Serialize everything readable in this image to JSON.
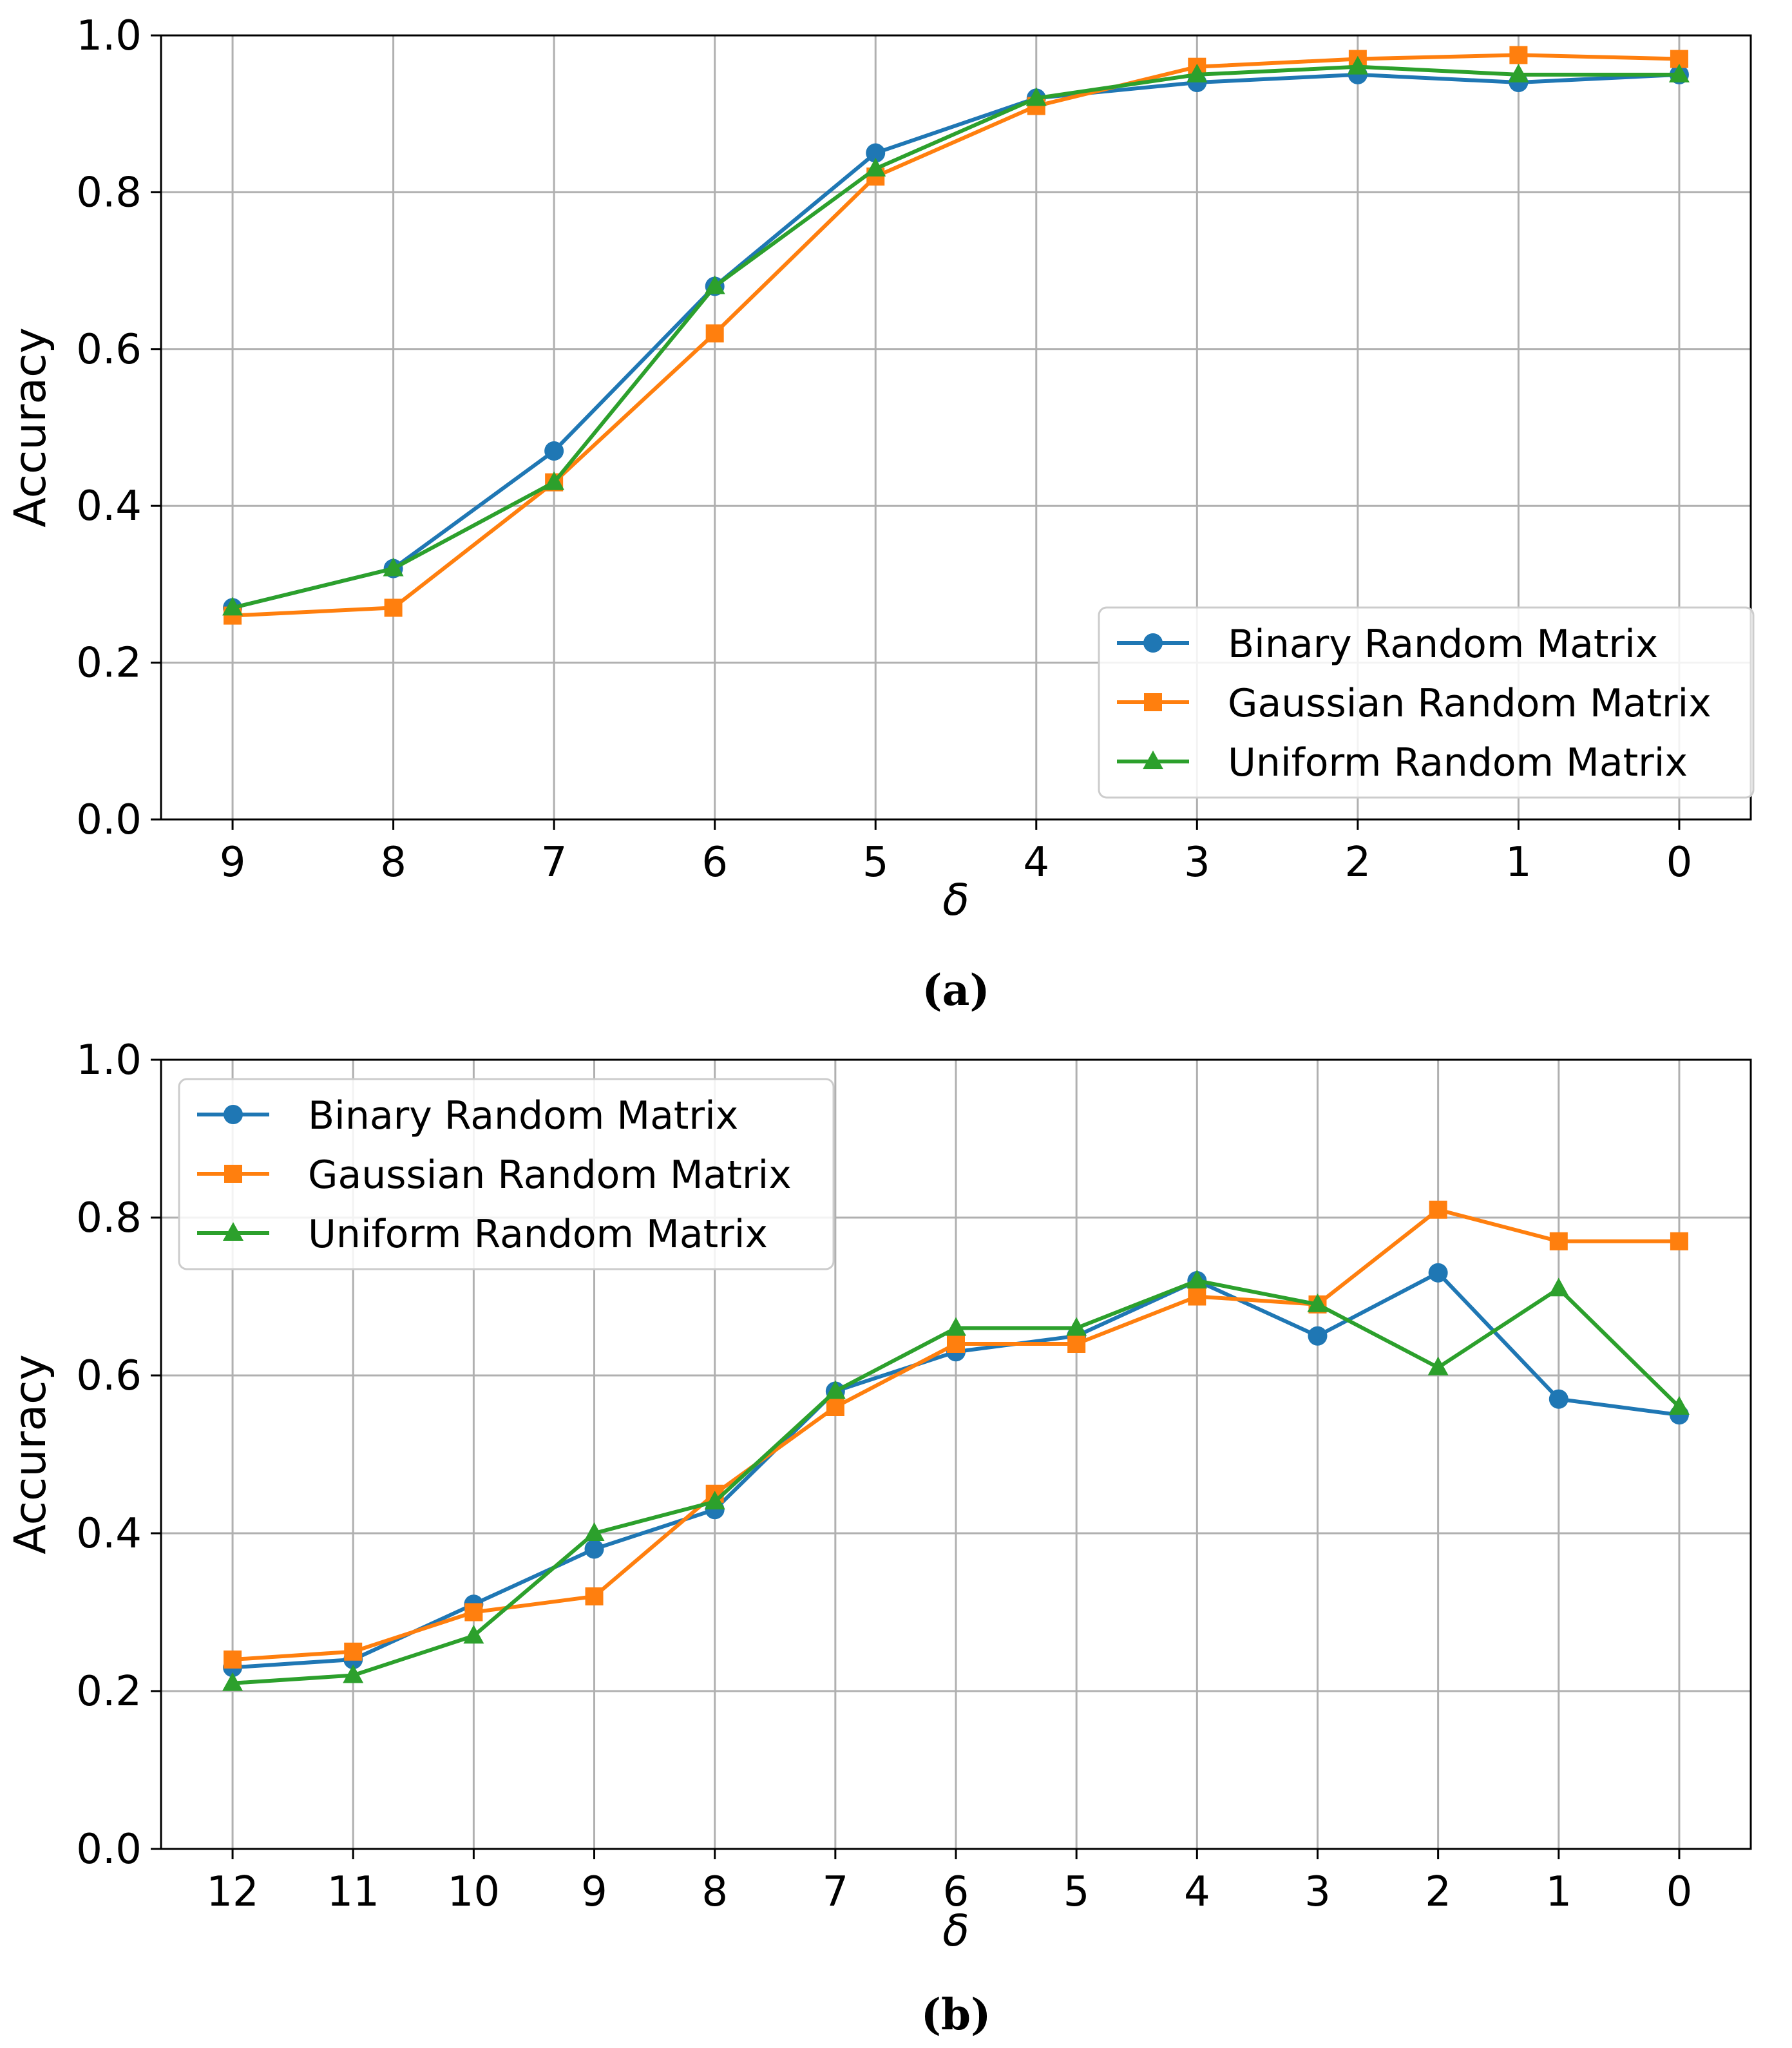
{
  "chart_data": [
    {
      "type": "line",
      "caption": "(a)",
      "xlabel": "δ",
      "ylabel": "Accuracy",
      "categories": [
        "9",
        "8",
        "7",
        "6",
        "5",
        "4",
        "3",
        "2",
        "1",
        "0"
      ],
      "yticks": [
        "0.0",
        "0.2",
        "0.4",
        "0.6",
        "0.8",
        "1.0"
      ],
      "ylim": [
        0,
        1
      ],
      "grid": true,
      "legend_position": "lower-right",
      "series": [
        {
          "name": "Binary Random Matrix",
          "color": "#1f77b4",
          "marker": "circle",
          "values": [
            0.27,
            0.32,
            0.47,
            0.68,
            0.85,
            0.92,
            0.94,
            0.95,
            0.94,
            0.95
          ]
        },
        {
          "name": "Gaussian Random Matrix",
          "color": "#ff7f0e",
          "marker": "square",
          "values": [
            0.26,
            0.27,
            0.43,
            0.62,
            0.82,
            0.91,
            0.96,
            0.97,
            0.975,
            0.97
          ]
        },
        {
          "name": "Uniform Random Matrix",
          "color": "#2ca02c",
          "marker": "triangle",
          "values": [
            0.27,
            0.32,
            0.43,
            0.68,
            0.83,
            0.92,
            0.95,
            0.96,
            0.95,
            0.95
          ]
        }
      ]
    },
    {
      "type": "line",
      "caption": "(b)",
      "xlabel": "δ",
      "ylabel": "Accuracy",
      "categories": [
        "12",
        "11",
        "10",
        "9",
        "8",
        "7",
        "6",
        "5",
        "4",
        "3",
        "2",
        "1",
        "0"
      ],
      "yticks": [
        "0.0",
        "0.2",
        "0.4",
        "0.6",
        "0.8",
        "1.0"
      ],
      "ylim": [
        0,
        1
      ],
      "grid": true,
      "legend_position": "upper-left",
      "series": [
        {
          "name": "Binary Random Matrix",
          "color": "#1f77b4",
          "marker": "circle",
          "values": [
            0.23,
            0.24,
            0.31,
            0.38,
            0.43,
            0.58,
            0.63,
            0.65,
            0.72,
            0.65,
            0.73,
            0.57,
            0.55
          ]
        },
        {
          "name": "Gaussian Random Matrix",
          "color": "#ff7f0e",
          "marker": "square",
          "values": [
            0.24,
            0.25,
            0.3,
            0.32,
            0.45,
            0.56,
            0.64,
            0.64,
            0.7,
            0.69,
            0.81,
            0.77,
            0.77
          ]
        },
        {
          "name": "Uniform Random Matrix",
          "color": "#2ca02c",
          "marker": "triangle",
          "values": [
            0.21,
            0.22,
            0.27,
            0.4,
            0.44,
            0.58,
            0.66,
            0.66,
            0.72,
            0.69,
            0.61,
            0.71,
            0.56
          ]
        }
      ]
    }
  ]
}
